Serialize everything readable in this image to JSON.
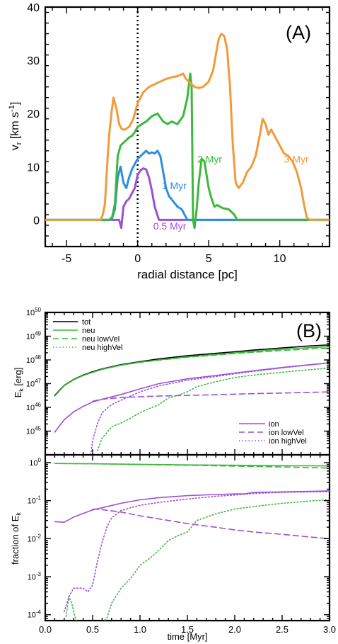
{
  "chart_data": [
    {
      "type": "line",
      "panel_label": "(A)",
      "xlabel": "radial distance [pc]",
      "ylabel_main": "v",
      "ylabel_sub": "r",
      "ylabel_units": " [km s",
      "ylabel_sup": "-1",
      "ylabel_close": "]",
      "xlim": [
        -6.5,
        13.5
      ],
      "ylim": [
        -5,
        40
      ],
      "x_ticks": [
        -5,
        0,
        5,
        10
      ],
      "x_tick_labels": [
        "-5",
        "0",
        "5",
        "10"
      ],
      "y_ticks": [
        0,
        10,
        20,
        30,
        40
      ],
      "y_tick_labels": [
        "0",
        "10",
        "20",
        "30",
        "40"
      ],
      "vline_x": 0,
      "series": [
        {
          "name": "0.5 Myr",
          "label_at": [
            1.1,
            -1.8
          ],
          "color": "#9b4fd6",
          "x": [
            -6.5,
            -2.0,
            -1.6,
            -1.3,
            -1.15,
            -1.0,
            -0.8,
            -0.6,
            -0.4,
            -0.2,
            0.0,
            0.2,
            0.4,
            0.6,
            0.8,
            1.0,
            1.2,
            1.5,
            13.5
          ],
          "y": [
            0,
            0,
            0,
            0,
            -1.5,
            2.5,
            3.5,
            4.0,
            5.0,
            6.0,
            8.5,
            9.3,
            9.7,
            9.5,
            8.0,
            5.5,
            2.5,
            0,
            0
          ]
        },
        {
          "name": "1 Myr",
          "label_at": [
            1.7,
            5.8
          ],
          "color": "#2b8fe0",
          "x": [
            -6.5,
            -2.0,
            -1.8,
            -1.6,
            -1.4,
            -1.2,
            -1.0,
            -0.8,
            -0.6,
            -0.4,
            -0.2,
            0.0,
            0.2,
            0.4,
            0.6,
            0.8,
            1.0,
            1.2,
            1.4,
            1.6,
            1.8,
            2.0,
            2.2,
            2.5,
            2.8,
            3.1,
            3.5,
            13.5
          ],
          "y": [
            0,
            0,
            0.3,
            2,
            8,
            10,
            7,
            6,
            8,
            9.5,
            10.5,
            11.5,
            12.0,
            12.5,
            13.0,
            12.5,
            12.7,
            12.5,
            13.0,
            12.0,
            9.0,
            6.0,
            4.5,
            3.5,
            2.5,
            2.0,
            0,
            0
          ]
        },
        {
          "name": "2 Myr",
          "label_at": [
            4.2,
            10.8
          ],
          "color": "#3cb83c",
          "x": [
            -6.5,
            -2.0,
            -1.8,
            -1.6,
            -1.4,
            -1.2,
            -1.0,
            -0.8,
            -0.6,
            -0.4,
            -0.2,
            0.0,
            0.3,
            0.6,
            1.0,
            1.4,
            1.8,
            2.1,
            2.4,
            2.8,
            3.2,
            3.5,
            3.7,
            3.8,
            3.9,
            4.0,
            4.15,
            4.3,
            4.5,
            4.7,
            5.0,
            5.2,
            5.4,
            5.6,
            5.8,
            6.0,
            6.4,
            6.8,
            7.0,
            13.5
          ],
          "y": [
            0,
            0,
            0.5,
            3,
            12,
            14,
            14.5,
            15,
            15.5,
            15.8,
            16.5,
            17.5,
            18.0,
            18.5,
            19.5,
            20.0,
            18.5,
            18.0,
            18.5,
            18.0,
            19.5,
            23,
            27.5,
            25,
            0,
            -1.5,
            2,
            7,
            11.5,
            11,
            6,
            4,
            2.5,
            2.8,
            2.5,
            2.2,
            2.0,
            1.0,
            0,
            0
          ]
        },
        {
          "name": "3 Myr",
          "label_at": [
            10.3,
            10.8
          ],
          "color": "#f29a3a",
          "x": [
            -6.5,
            -2.6,
            -2.45,
            -2.3,
            -2.15,
            -2.0,
            -1.85,
            -1.7,
            -1.5,
            -1.3,
            -1.1,
            -0.9,
            -0.6,
            -0.3,
            0.0,
            0.4,
            0.8,
            1.2,
            1.6,
            2.0,
            2.4,
            2.8,
            3.2,
            3.4,
            3.6,
            3.8,
            4.0,
            4.3,
            4.6,
            5.0,
            5.3,
            5.5,
            5.7,
            5.9,
            6.1,
            6.3,
            6.5,
            6.7,
            6.9,
            7.1,
            7.4,
            7.7,
            8.0,
            8.3,
            8.6,
            8.8,
            9.0,
            9.2,
            9.4,
            9.6,
            9.8,
            10.0,
            10.3,
            10.6,
            10.9,
            11.2,
            11.5,
            11.7,
            11.9,
            12.1,
            12.3,
            13.5
          ],
          "y": [
            0,
            0,
            1,
            3,
            10,
            16,
            20,
            23,
            21,
            18,
            17,
            17,
            17.5,
            19,
            22,
            24,
            25,
            25.5,
            26,
            26.5,
            26.8,
            27,
            27.5,
            26.5,
            26,
            25.5,
            25,
            24.8,
            25,
            26,
            28,
            31,
            34,
            35,
            34.5,
            32,
            25,
            14,
            7,
            6,
            7,
            9,
            10,
            12,
            16,
            19,
            18,
            16,
            17,
            16,
            15,
            14,
            12.5,
            12,
            11,
            9,
            6,
            3,
            0.5,
            0,
            0,
            0
          ]
        }
      ]
    },
    {
      "type": "line",
      "panel_label": "(B)",
      "ylabel_main": "E",
      "ylabel_sub": "k",
      "ylabel_units": " [erg]",
      "xlim": [
        0,
        3
      ],
      "ylim": [
        1e+44,
        1e+50
      ],
      "log_y": true,
      "y_ticks": [
        1e+45,
        1e+46,
        1e+47,
        1e+48,
        1e+49,
        1e+50
      ],
      "y_tick_bases": [
        "10",
        "10",
        "10",
        "10",
        "10",
        "10"
      ],
      "y_tick_exponents": [
        "45",
        "46",
        "47",
        "48",
        "49",
        "50"
      ],
      "legend_top_left": [
        {
          "label": "tot",
          "color": "#000000",
          "dash": "solid"
        },
        {
          "label": "neu",
          "color": "#3cb83c",
          "dash": "solid"
        },
        {
          "label": "neu lowVel",
          "color": "#3cb83c",
          "dash": "dashed"
        },
        {
          "label": "neu highVel",
          "color": "#3cb83c",
          "dash": "dotted"
        }
      ],
      "legend_bottom_right": [
        {
          "label": "ion",
          "color": "#9b4fd6",
          "dash": "solid"
        },
        {
          "label": "ion lowVel",
          "color": "#9b4fd6",
          "dash": "dashed"
        },
        {
          "label": "ion highVel",
          "color": "#9b4fd6",
          "dash": "dotted"
        }
      ],
      "series": [
        {
          "name": "tot",
          "color": "#000000",
          "dash": "solid",
          "x": [
            0.1,
            0.2,
            0.3,
            0.4,
            0.5,
            0.6,
            0.8,
            1.0,
            1.2,
            1.5,
            1.8,
            2.0,
            2.2,
            2.5,
            2.8,
            3.0
          ],
          "y": [
            3.2e+46,
            8.5e+46,
            1.5e+47,
            2.3e+47,
            3.2e+47,
            4.2e+47,
            6.3e+47,
            8.5e+47,
            1.1e+48,
            1.5e+48,
            1.9e+48,
            2.2e+48,
            2.6e+48,
            3.2e+48,
            3.9e+48,
            4.3e+48
          ]
        },
        {
          "name": "neu",
          "color": "#3cb83c",
          "dash": "solid",
          "x": [
            0.1,
            0.2,
            0.3,
            0.4,
            0.5,
            0.6,
            0.8,
            1.0,
            1.2,
            1.5,
            1.8,
            2.0,
            2.2,
            2.5,
            2.8,
            3.0
          ],
          "y": [
            3e+46,
            8.2e+46,
            1.45e+47,
            2.2e+47,
            3e+47,
            4e+47,
            6e+47,
            8e+47,
            1e+48,
            1.35e+48,
            1.7e+48,
            2e+48,
            2.3e+48,
            2.8e+48,
            3.3e+48,
            3.6e+48
          ]
        },
        {
          "name": "neu lowVel",
          "color": "#3cb83c",
          "dash": "dashed",
          "x": [
            0.1,
            0.2,
            0.3,
            0.4,
            0.5,
            0.6,
            0.8,
            1.0,
            1.2,
            1.5,
            1.8,
            2.0,
            2.2,
            2.5,
            2.8,
            3.0
          ],
          "y": [
            3e+46,
            8.2e+46,
            1.45e+47,
            2.2e+47,
            3e+47,
            4e+47,
            6e+47,
            7.9e+47,
            9.8e+47,
            1.3e+48,
            1.6e+48,
            1.85e+48,
            2.1e+48,
            2.5e+48,
            2.9e+48,
            3.1e+48
          ]
        },
        {
          "name": "neu highVel",
          "color": "#3cb83c",
          "dash": "dotted",
          "x": [
            0.55,
            0.6,
            0.7,
            0.8,
            0.9,
            1.0,
            1.1,
            1.2,
            1.3,
            1.4,
            1.5,
            1.6,
            1.8,
            2.0,
            2.2,
            2.5,
            2.8,
            3.0
          ],
          "y": [
            1.5e+44,
            5e+44,
            1.5e+45,
            2.2e+45,
            3.5e+45,
            6e+45,
            9e+45,
            1.3e+46,
            2.5e+46,
            3.2e+46,
            4.5e+46,
            7.5e+46,
            1.2e+47,
            1.8e+47,
            2.3e+47,
            3e+47,
            3.9e+47,
            4.5e+47
          ]
        },
        {
          "name": "ion",
          "color": "#9b4fd6",
          "dash": "solid",
          "x": [
            0.1,
            0.2,
            0.3,
            0.4,
            0.5,
            0.6,
            0.8,
            1.0,
            1.2,
            1.5,
            1.8,
            2.0,
            2.2,
            2.5,
            2.8,
            3.0
          ],
          "y": [
            9e+44,
            3e+45,
            6.5e+45,
            1.1e+46,
            1.7e+46,
            2.2e+46,
            3.5e+46,
            6e+46,
            1e+47,
            1.6e+47,
            2.2e+47,
            2.8e+47,
            3.5e+47,
            4.8e+47,
            6.3e+47,
            7.5e+47
          ]
        },
        {
          "name": "ion lowVel",
          "color": "#9b4fd6",
          "dash": "dashed",
          "x": [
            0.5,
            0.6,
            0.8,
            1.0,
            1.2,
            1.5,
            1.8,
            2.0,
            2.2,
            2.5,
            2.8,
            3.0
          ],
          "y": [
            1.8e+46,
            2.2e+46,
            2.6e+46,
            2.8e+46,
            3e+46,
            3.2e+46,
            3.4e+46,
            3.6e+46,
            3.8e+46,
            4e+46,
            4.3e+46,
            4.5e+46
          ]
        },
        {
          "name": "ion highVel",
          "color": "#9b4fd6",
          "dash": "dotted",
          "x": [
            0.48,
            0.5,
            0.55,
            0.6,
            0.7,
            0.8,
            0.9,
            1.0,
            1.2,
            1.5,
            1.8,
            2.0,
            2.2,
            2.5,
            2.8,
            3.0
          ],
          "y": [
            1e+44,
            4e+44,
            2e+45,
            6e+45,
            1.3e+46,
            2e+46,
            3e+46,
            4.5e+46,
            8e+46,
            1.4e+47,
            2e+47,
            2.6e+47,
            3.3e+47,
            4.6e+47,
            6.2e+47,
            7.5e+47
          ]
        }
      ]
    },
    {
      "type": "line",
      "xlabel": "time [Myr]",
      "ylabel_main": "fraction of E",
      "ylabel_sub": "k",
      "xlim": [
        0,
        3
      ],
      "ylim": [
        7e-05,
        1.6
      ],
      "log_y": true,
      "x_ticks": [
        0,
        0.5,
        1.0,
        1.5,
        2.0,
        2.5,
        3.0
      ],
      "x_tick_labels": [
        "0.0",
        "0.5",
        "1.0",
        "1.5",
        "2.0",
        "2.5",
        "3.0"
      ],
      "y_ticks": [
        0.0001,
        0.001,
        0.01,
        0.1,
        1
      ],
      "y_tick_bases": [
        "10",
        "10",
        "10",
        "10",
        "10"
      ],
      "y_tick_exponents": [
        "-4",
        "-3",
        "-2",
        "-1",
        "0"
      ],
      "series": [
        {
          "name": "neu",
          "color": "#3cb83c",
          "dash": "solid",
          "x": [
            0.1,
            0.5,
            1.0,
            1.5,
            2.0,
            2.5,
            3.0
          ],
          "y": [
            0.95,
            0.93,
            0.9,
            0.87,
            0.85,
            0.83,
            0.82
          ]
        },
        {
          "name": "neu lowVel",
          "color": "#3cb83c",
          "dash": "dashed",
          "x": [
            0.1,
            0.5,
            1.0,
            1.5,
            2.0,
            2.5,
            3.0
          ],
          "y": [
            0.95,
            0.93,
            0.89,
            0.85,
            0.81,
            0.77,
            0.72
          ]
        },
        {
          "name": "neu highVel",
          "color": "#3cb83c",
          "dash": "dotted",
          "x": [
            0.22,
            0.25,
            0.28,
            0.3,
            0.32,
            0.35,
            0.55,
            0.65,
            0.7,
            0.8,
            0.9,
            1.0,
            1.1,
            1.2,
            1.3,
            1.4,
            1.5,
            1.6,
            1.8,
            2.0,
            2.2,
            2.5,
            2.8,
            3.0
          ],
          "y": [
            9e-05,
            0.0003,
            0.0002,
            0.00012,
            8e-05,
            5e-05,
            5e-05,
            8e-05,
            0.0002,
            0.0005,
            0.0009,
            0.002,
            0.003,
            0.005,
            0.009,
            0.012,
            0.015,
            0.03,
            0.045,
            0.06,
            0.07,
            0.085,
            0.098,
            0.105
          ]
        },
        {
          "name": "ion",
          "color": "#9b4fd6",
          "dash": "solid",
          "x": [
            0.1,
            0.2,
            0.3,
            0.4,
            0.5,
            0.6,
            0.8,
            1.0,
            1.2,
            1.5,
            1.8,
            2.0,
            2.1,
            2.2,
            2.5,
            2.8,
            3.0
          ],
          "y": [
            0.028,
            0.027,
            0.037,
            0.046,
            0.057,
            0.065,
            0.085,
            0.105,
            0.12,
            0.135,
            0.145,
            0.15,
            0.15,
            0.165,
            0.17,
            0.175,
            0.18
          ]
        },
        {
          "name": "ion lowVel",
          "color": "#9b4fd6",
          "dash": "dashed",
          "x": [
            0.5,
            0.6,
            0.8,
            1.0,
            1.2,
            1.5,
            1.8,
            2.0,
            2.2,
            2.5,
            2.8,
            3.0
          ],
          "y": [
            0.06,
            0.058,
            0.05,
            0.04,
            0.033,
            0.025,
            0.02,
            0.017,
            0.015,
            0.013,
            0.011,
            0.01
          ]
        },
        {
          "name": "ion highVel",
          "color": "#9b4fd6",
          "dash": "dotted",
          "x": [
            0.2,
            0.25,
            0.3,
            0.4,
            0.45,
            0.5,
            0.55,
            0.6,
            0.65,
            0.7,
            0.8,
            0.9,
            1.0,
            1.2,
            1.5,
            1.8,
            2.0,
            2.2,
            2.5,
            2.8,
            3.0
          ],
          "y": [
            0.00012,
            0.0003,
            0.0005,
            0.0005,
            0.0004,
            0.0006,
            0.0025,
            0.008,
            0.02,
            0.035,
            0.055,
            0.065,
            0.075,
            0.09,
            0.11,
            0.13,
            0.14,
            0.155,
            0.165,
            0.17,
            0.172
          ]
        }
      ]
    }
  ]
}
